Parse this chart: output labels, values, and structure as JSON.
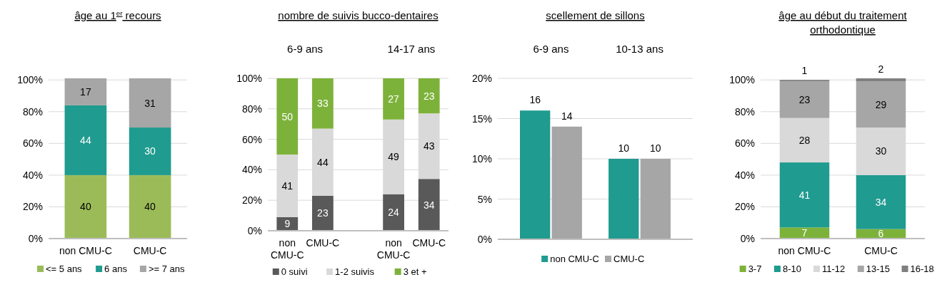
{
  "chart_data": [
    {
      "type": "bar",
      "title": "âge au 1$^{er}$ recours",
      "stacked": true,
      "categories": [
        "non CMU-C",
        "CMU-C"
      ],
      "series": [
        {
          "name": "<= 5 ans",
          "color": "#9bbb59",
          "values": [
            40,
            40
          ]
        },
        {
          "name": "6 ans",
          "color": "#1f9b8f",
          "values": [
            44,
            30
          ]
        },
        {
          "name": ">= 7 ans",
          "color": "#a6a6a6",
          "values": [
            17,
            31
          ]
        }
      ],
      "ylim": [
        0,
        101
      ],
      "yticks": [
        {
          "value": 0,
          "label": "0%"
        },
        {
          "value": 20,
          "label": "20%"
        },
        {
          "value": 40,
          "label": "40%"
        },
        {
          "value": 60,
          "label": "60%"
        },
        {
          "value": 80,
          "label": "80%"
        },
        {
          "value": 100,
          "label": "100%"
        }
      ],
      "grid": "y",
      "legend": "bottom",
      "data_labels": true
    },
    {
      "type": "bar",
      "title": "nombre de suivis bucco-dentaires",
      "stacked": true,
      "categories": [
        "non CMU-C",
        "CMU-C",
        null,
        "non CMU-C",
        "CMU-C"
      ],
      "annotations": [
        "6-9 ans",
        "14-17 ans"
      ],
      "series": [
        {
          "name": "0 suivi",
          "color": "#595959",
          "values": [
            9,
            23,
            null,
            24,
            34
          ]
        },
        {
          "name": "1-2 suivis",
          "color": "#d9d9d9",
          "values": [
            41,
            44,
            null,
            49,
            43
          ]
        },
        {
          "name": "3 et +",
          "color": "#7db23a",
          "values": [
            50,
            33,
            null,
            27,
            23
          ]
        }
      ],
      "ylim": [
        0,
        100
      ],
      "yticks": [
        {
          "value": 0,
          "label": "0%"
        },
        {
          "value": 20,
          "label": "20%"
        },
        {
          "value": 40,
          "label": "40%"
        },
        {
          "value": 60,
          "label": "60%"
        },
        {
          "value": 80,
          "label": "80%"
        },
        {
          "value": 100,
          "label": "100%"
        }
      ],
      "grid": "y",
      "legend": "bottom",
      "data_labels": true
    },
    {
      "type": "bar",
      "title": "scellement de sillons",
      "categories": [
        "6-9 ans",
        "10-13 ans"
      ],
      "series": [
        {
          "name": "non CMU-C",
          "color": "#1f9b8f",
          "values": [
            16,
            10
          ]
        },
        {
          "name": "CMU-C",
          "color": "#a6a6a6",
          "values": [
            14,
            10
          ]
        }
      ],
      "ylim": [
        0,
        20
      ],
      "yticks": [
        {
          "value": 0,
          "label": "0%"
        },
        {
          "value": 5,
          "label": "5%"
        },
        {
          "value": 10,
          "label": "10%"
        },
        {
          "value": 15,
          "label": "15%"
        },
        {
          "value": 20,
          "label": "20%"
        }
      ],
      "grid": "y",
      "legend": "bottom",
      "data_labels": true
    },
    {
      "type": "bar",
      "title": "âge au début du traitement orthodontique",
      "stacked": true,
      "categories": [
        "non CMU-C",
        "CMU-C"
      ],
      "series": [
        {
          "name": "3-7",
          "color": "#7db23a",
          "values": [
            7,
            6
          ]
        },
        {
          "name": "8-10",
          "color": "#1f9b8f",
          "values": [
            41,
            34
          ]
        },
        {
          "name": "11-12",
          "color": "#d9d9d9",
          "values": [
            28,
            30
          ]
        },
        {
          "name": "13-15",
          "color": "#a6a6a6",
          "values": [
            23,
            29
          ]
        },
        {
          "name": "16-18",
          "color": "#7f7f7f",
          "values": [
            1,
            2
          ]
        }
      ],
      "ylim": [
        0,
        101
      ],
      "yticks": [
        {
          "value": 0,
          "label": "0%"
        },
        {
          "value": 20,
          "label": "20%"
        },
        {
          "value": 40,
          "label": "40%"
        },
        {
          "value": 60,
          "label": "60%"
        },
        {
          "value": 80,
          "label": "80%"
        },
        {
          "value": 100,
          "label": "100%"
        }
      ],
      "grid": "y",
      "legend": "bottom",
      "data_labels": true
    }
  ]
}
